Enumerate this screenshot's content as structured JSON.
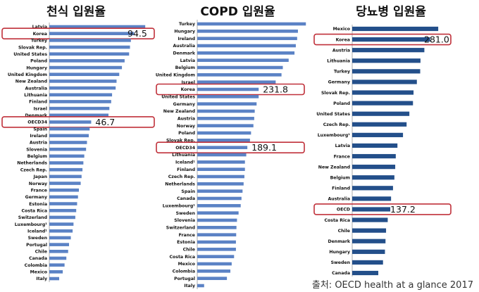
{
  "charts_titles": [
    "천식 입원율",
    "COPD 입원율",
    "당뇨병 입원율"
  ],
  "source": "출처: OECD health at a glance 2017",
  "colors": {
    "bar_light": "#5b82c5",
    "bar_dark": "#234f8a",
    "highlight": "#c0303a",
    "text": "#111111"
  },
  "chart_data": [
    {
      "type": "bar",
      "orientation": "horizontal",
      "title": "천식 입원율",
      "categories": [
        "Latvia",
        "Korea",
        "Turkey",
        "Slovak Rep.",
        "United States",
        "Poland",
        "Hungary",
        "United Kingdom",
        "New Zealand",
        "Australia",
        "Lithuania",
        "Finland",
        "Israel",
        "Denmark",
        "OECD34",
        "Spain",
        "Ireland",
        "Austria",
        "Slovenia",
        "Belgium",
        "Netherlands",
        "Czech Rep.",
        "Japan",
        "Norway",
        "France",
        "Germany",
        "Estonia",
        "Costa Rica",
        "Switzerland",
        "Luxembourg¹",
        "Iceland¹",
        "Sweden",
        "Portugal",
        "Chile",
        "Canada",
        "Colombia",
        "Mexico",
        "Italy"
      ],
      "values": [
        107,
        94.5,
        91,
        90,
        89,
        84,
        81,
        78,
        75,
        74,
        70,
        69,
        67,
        66,
        46.7,
        45,
        44,
        42,
        41,
        39,
        38,
        37,
        36,
        35,
        33,
        32,
        31,
        30,
        29,
        27,
        26,
        24,
        22,
        21,
        19,
        17,
        15,
        11
      ],
      "labels": [
        {
          "category": "Korea",
          "text": "94.5"
        },
        {
          "category": "OECD34",
          "text": "46.7"
        }
      ],
      "highlight": [
        "Korea",
        "OECD34"
      ],
      "xlim": [
        0,
        110
      ]
    },
    {
      "type": "bar",
      "orientation": "horizontal",
      "title": "COPD 입원율",
      "categories": [
        "Turkey",
        "Hungary",
        "Ireland",
        "Australia",
        "Denmark",
        "Latvia",
        "Belgium",
        "United Kingdom",
        "Israel",
        "Korea",
        "United States",
        "Germany",
        "New Zealand",
        "Austria",
        "Norway",
        "Poland",
        "Slovak Rep.",
        "OECD34",
        "Lithuania",
        "Iceland¹",
        "Finland",
        "Czech Rep.",
        "Netherlands",
        "Spain",
        "Canada",
        "Luxembourg¹",
        "Sweden",
        "Slovenia",
        "Switzerland",
        "France",
        "Estonia",
        "Chile",
        "Costa Rica",
        "Mexico",
        "Colombia",
        "Portugal",
        "Italy"
      ],
      "values": [
        410,
        380,
        377,
        372,
        367,
        345,
        323,
        318,
        296,
        231.8,
        231.8,
        224,
        217,
        215,
        212,
        203,
        199,
        189.1,
        185,
        180,
        180,
        178,
        175,
        171,
        167,
        164,
        156,
        150,
        148,
        147,
        146,
        146,
        139,
        130,
        125,
        112,
        26
      ],
      "labels": [
        {
          "category": "Korea",
          "text": "231.8"
        },
        {
          "category": "OECD34",
          "text": "189.1"
        }
      ],
      "highlight": [
        "Korea",
        "OECD34"
      ],
      "xlim": [
        0,
        420
      ]
    },
    {
      "type": "bar",
      "orientation": "horizontal",
      "title": "당뇨병 입원율",
      "categories": [
        "Mexico",
        "Korea",
        "Austria",
        "Lithuania",
        "Turkey",
        "Germany",
        "Slovak Rep.",
        "Poland",
        "United States",
        "Czech Rep.",
        "Luxembourg¹",
        "Latvia",
        "France",
        "New Zealand",
        "Belgium",
        "Finland",
        "Australia",
        "OECD",
        "Costa Rica",
        "Chile",
        "Denmark",
        "Hungary",
        "Sweden",
        "Canada"
      ],
      "values": [
        310,
        281.0,
        260,
        246,
        245,
        233,
        221,
        219,
        206,
        196,
        183,
        163,
        157,
        155,
        152,
        147,
        140,
        137.2,
        128,
        122,
        120,
        118,
        111,
        94
      ],
      "labels": [
        {
          "category": "Korea",
          "text": "281.0"
        },
        {
          "category": "OECD",
          "text": "137.2"
        }
      ],
      "highlight": [
        "Korea",
        "OECD"
      ],
      "xlim": [
        0,
        330
      ]
    }
  ]
}
